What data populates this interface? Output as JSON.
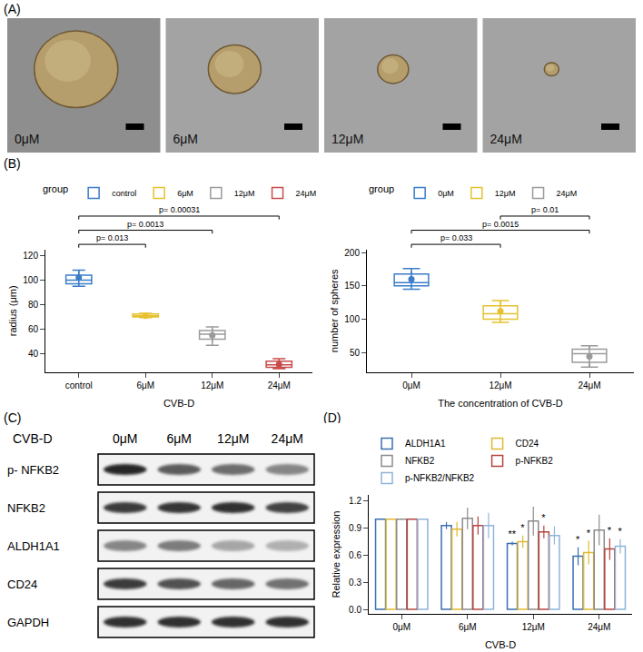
{
  "panel_a": {
    "letter": "(A)",
    "labels": [
      "0μM",
      "6μM",
      "12μM",
      "24μM"
    ]
  },
  "panel_b": {
    "letter": "(B)"
  },
  "panel_c": {
    "letter": "(C)",
    "header": "CVB-D",
    "columns": [
      "0μM",
      "6μM",
      "12μM",
      "24μM"
    ],
    "rows": [
      "p- NFKB2",
      "NFKB2",
      "ALDH1A1",
      "CD24",
      "GAPDH"
    ]
  },
  "panel_d": {
    "letter": "(D)"
  },
  "chart_data": [
    {
      "type": "box",
      "x_label": "CVB-D",
      "y_label": "radius (μm)",
      "legend_title": "group",
      "legend": "top",
      "categories": [
        "control",
        "6μM",
        "12μM",
        "24μM"
      ],
      "ylim": [
        25,
        125
      ],
      "yticks": [
        40,
        60,
        80,
        100,
        120
      ],
      "series": [
        {
          "name": "control",
          "color": "#3a7dc9",
          "q1": 97,
          "median": 100,
          "q3": 104,
          "lower": 95,
          "upper": 108,
          "mean": 102,
          "sd": 6
        },
        {
          "name": "6μM",
          "color": "#e5c12f",
          "q1": 70,
          "median": 71,
          "q3": 72.5,
          "lower": 69.5,
          "upper": 73,
          "mean": 71,
          "sd": 1
        },
        {
          "name": "12μM",
          "color": "#9a9a9a",
          "q1": 52,
          "median": 56,
          "q3": 59,
          "lower": 47,
          "upper": 62,
          "mean": 55,
          "sd": 6
        },
        {
          "name": "24μM",
          "color": "#c84b4b",
          "q1": 29,
          "median": 31,
          "q3": 34,
          "lower": 28,
          "upper": 36,
          "mean": 31.5,
          "sd": 3
        }
      ],
      "comparisons": [
        {
          "groups": [
            "control",
            "6μM"
          ],
          "label": "p= 0.013"
        },
        {
          "groups": [
            "control",
            "12μM"
          ],
          "label": "p= 0.0013"
        },
        {
          "groups": [
            "control",
            "24μM"
          ],
          "label": "p= 0.00031"
        }
      ]
    },
    {
      "type": "box",
      "x_label": "The concentration of CVB-D",
      "y_label": "number of spheres",
      "legend_title": "group",
      "legend": "top",
      "categories": [
        "0μM",
        "12μM",
        "24μM"
      ],
      "ylim": [
        20,
        205
      ],
      "yticks": [
        50,
        100,
        150,
        200
      ],
      "series": [
        {
          "name": "0μM",
          "color": "#3a7dc9",
          "q1": 150,
          "median": 155,
          "q3": 168,
          "lower": 145,
          "upper": 176,
          "mean": 160,
          "sd": 12
        },
        {
          "name": "12μM",
          "color": "#e5c12f",
          "q1": 100,
          "median": 108,
          "q3": 120,
          "lower": 95,
          "upper": 128,
          "mean": 112,
          "sd": 15
        },
        {
          "name": "24μM",
          "color": "#9a9a9a",
          "q1": 35,
          "median": 48,
          "q3": 55,
          "lower": 28,
          "upper": 60,
          "mean": 44,
          "sd": 17
        }
      ],
      "comparisons": [
        {
          "groups": [
            "0μM",
            "12μM"
          ],
          "label": "p= 0.033"
        },
        {
          "groups": [
            "0μM",
            "24μM"
          ],
          "label": "p= 0.0015"
        },
        {
          "groups": [
            "12μM",
            "24μM"
          ],
          "label": "p= 0.01"
        }
      ]
    },
    {
      "type": "bar",
      "x_label": "CVB-D",
      "y_label": "Relative expression",
      "legend": "top",
      "categories": [
        "0μM",
        "6μM",
        "12μM",
        "24μM"
      ],
      "ylim": [
        -0.05,
        1.27
      ],
      "yticks": [
        {
          "value": 0,
          "label": "0.0"
        },
        0.3,
        0.6,
        0.9,
        1.2
      ],
      "series": [
        {
          "name": "ALDH1A1",
          "color": "#3a6fb0",
          "values": [
            1,
            0.93,
            0.73,
            0.59
          ],
          "errors": [
            null,
            0.04,
            0.02,
            0.1
          ],
          "significance": [
            null,
            null,
            "**",
            "*"
          ]
        },
        {
          "name": "CD24",
          "color": "#e0b830",
          "values": [
            1,
            0.89,
            0.75,
            0.63
          ],
          "errors": [
            null,
            0.08,
            0.07,
            0.13
          ],
          "significance": [
            null,
            null,
            "*",
            "*"
          ]
        },
        {
          "name": "NFKB2",
          "color": "#8c8c8c",
          "values": [
            1,
            1.01,
            0.98,
            0.88
          ],
          "errors": [
            null,
            0.12,
            0.16,
            0.17
          ],
          "significance": [
            null,
            null,
            null,
            null
          ]
        },
        {
          "name": "p-NFKB2",
          "color": "#b5453f",
          "values": [
            1,
            0.93,
            0.86,
            0.67
          ],
          "errors": [
            null,
            0.1,
            0.07,
            0.12
          ],
          "significance": [
            null,
            null,
            "*",
            "*"
          ]
        },
        {
          "name": "p-NFKB2/NFKB2",
          "color": "#8fb4d9",
          "values": [
            1,
            0.93,
            0.82,
            0.7
          ],
          "errors": [
            null,
            0.14,
            0.1,
            0.08
          ],
          "significance": [
            null,
            null,
            null,
            "*"
          ]
        }
      ]
    }
  ]
}
